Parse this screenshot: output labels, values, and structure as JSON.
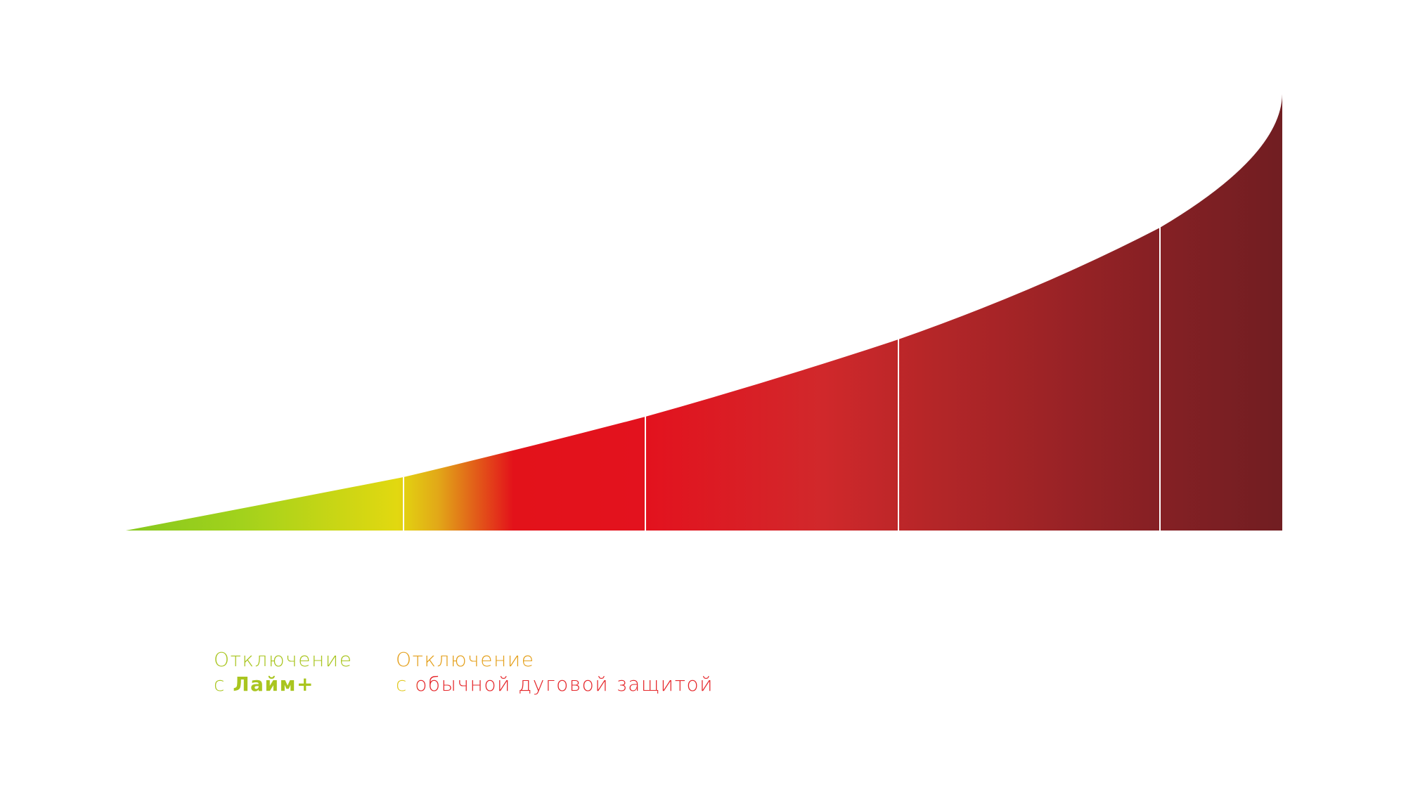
{
  "labels": [
    {
      "line1": "Отключение",
      "line2_prefix": "с",
      "line2_bold": "Лайм+"
    },
    {
      "line1": "Отключение",
      "line2": "с обычной дуговой защитой"
    }
  ]
}
